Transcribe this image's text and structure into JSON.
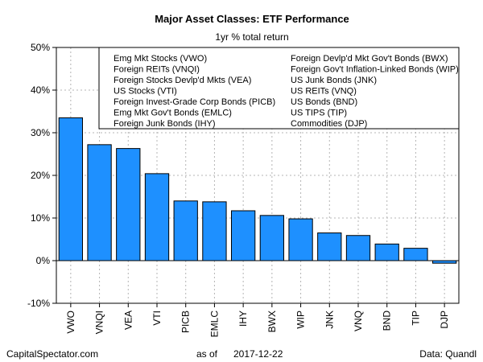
{
  "chart_data": {
    "type": "bar",
    "title": "Major Asset Classes: ETF Performance",
    "subtitle": "1yr % total return",
    "xlabel": "",
    "ylabel": "",
    "ylim": [
      -10,
      50
    ],
    "yticks": [
      "-10%",
      "0%",
      "10%",
      "20%",
      "30%",
      "40%",
      "50%"
    ],
    "ytick_values": [
      -10,
      0,
      10,
      20,
      30,
      40,
      50
    ],
    "grid": true,
    "legend_position": "top-right",
    "categories": [
      "VWO",
      "VNQI",
      "VEA",
      "VTI",
      "PICB",
      "EMLC",
      "IHY",
      "BWX",
      "WIP",
      "JNK",
      "VNQ",
      "BND",
      "TIP",
      "DJP"
    ],
    "values": [
      33.5,
      27.2,
      26.3,
      20.4,
      14.0,
      13.8,
      11.7,
      10.6,
      9.8,
      6.5,
      5.9,
      3.9,
      2.9,
      -0.6
    ],
    "bar_color": "#1e90ff",
    "legend": {
      "left": [
        "Emg Mkt Stocks (VWO)",
        "Foreign REITs (VNQI)",
        "Foreign Stocks Devlp'd Mkts (VEA)",
        "US Stocks (VTI)",
        "Foreign Invest-Grade Corp Bonds (PICB)",
        "Emg Mkt Gov't Bonds (EMLC)",
        "Foreign Junk Bonds (IHY)"
      ],
      "right": [
        "Foreign Devlp'd Mkt Gov't Bonds (BWX)",
        "Foreign Gov't Inflation-Linked Bonds (WIP)",
        "US Junk Bonds (JNK)",
        "US REITs (VNQ)",
        "US Bonds (BND)",
        "US TIPS (TIP)",
        "Commodities (DJP)"
      ]
    }
  },
  "footer": {
    "source": "CapitalSpectator.com",
    "as_of_label": "as of",
    "date": "2017-12-22",
    "data_label": "Data: Quandl"
  }
}
